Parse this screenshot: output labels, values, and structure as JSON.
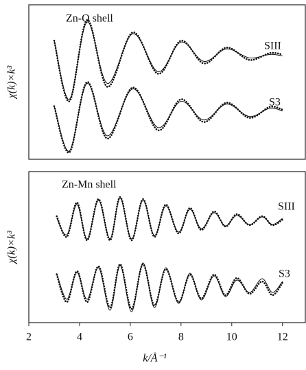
{
  "chart_data": [
    {
      "type": "line",
      "title": "Zn-O shell",
      "y_label": "χ(k)×k³",
      "x": [
        3.0,
        3.6,
        4.3,
        5.1,
        6.1,
        7.1,
        8.0,
        8.9,
        9.8,
        10.7,
        11.5,
        12.0
      ],
      "xlim": [
        2,
        12.9
      ],
      "ylim": [
        0,
        224
      ],
      "series": [
        {
          "name": "SIII",
          "color": "#111111",
          "values": [
            172,
            84,
            202,
            105,
            184,
            124,
            172,
            139,
            162,
            144,
            154,
            152
          ],
          "fit": [
            172,
            87,
            199,
            110,
            182,
            127,
            170,
            142,
            160,
            147,
            152,
            150
          ]
        },
        {
          "name": "S3",
          "color": "#111111",
          "values": [
            77,
            10,
            112,
            30,
            104,
            42,
            87,
            54,
            82,
            60,
            76,
            72
          ],
          "fit": [
            77,
            12,
            110,
            34,
            102,
            46,
            84,
            57,
            80,
            62,
            74,
            70
          ]
        }
      ]
    },
    {
      "type": "line",
      "title": "Zn-Mn shell",
      "y_label": "χ(k)×k³",
      "x_label": "k/Å⁻¹",
      "x": [
        3.1,
        3.5,
        3.9,
        4.3,
        4.75,
        5.2,
        5.6,
        6.05,
        6.5,
        6.95,
        7.4,
        7.9,
        8.35,
        8.8,
        9.3,
        9.75,
        10.2,
        10.7,
        11.2,
        11.6,
        12.0
      ],
      "xlim": [
        2,
        12.9
      ],
      "ylim": [
        0,
        220
      ],
      "xticks": [
        2,
        4,
        6,
        8,
        10,
        12
      ],
      "series": [
        {
          "name": "SIII",
          "color": "#111111",
          "values": [
            155,
            125,
            175,
            120,
            180,
            120,
            183,
            120,
            180,
            125,
            172,
            130,
            167,
            135,
            162,
            140,
            158,
            142,
            155,
            142,
            150
          ],
          "fit": [
            152,
            128,
            172,
            122,
            178,
            122,
            181,
            122,
            178,
            127,
            170,
            132,
            165,
            137,
            160,
            141,
            156,
            143,
            154,
            143,
            152
          ]
        },
        {
          "name": "S3",
          "color": "#111111",
          "values": [
            70,
            30,
            75,
            30,
            82,
            22,
            85,
            20,
            85,
            25,
            78,
            30,
            70,
            35,
            70,
            40,
            65,
            42,
            60,
            40,
            58
          ],
          "fit": [
            72,
            34,
            73,
            34,
            80,
            18,
            83,
            16,
            87,
            22,
            80,
            28,
            72,
            33,
            68,
            38,
            62,
            44,
            64,
            44,
            60
          ]
        }
      ]
    }
  ]
}
